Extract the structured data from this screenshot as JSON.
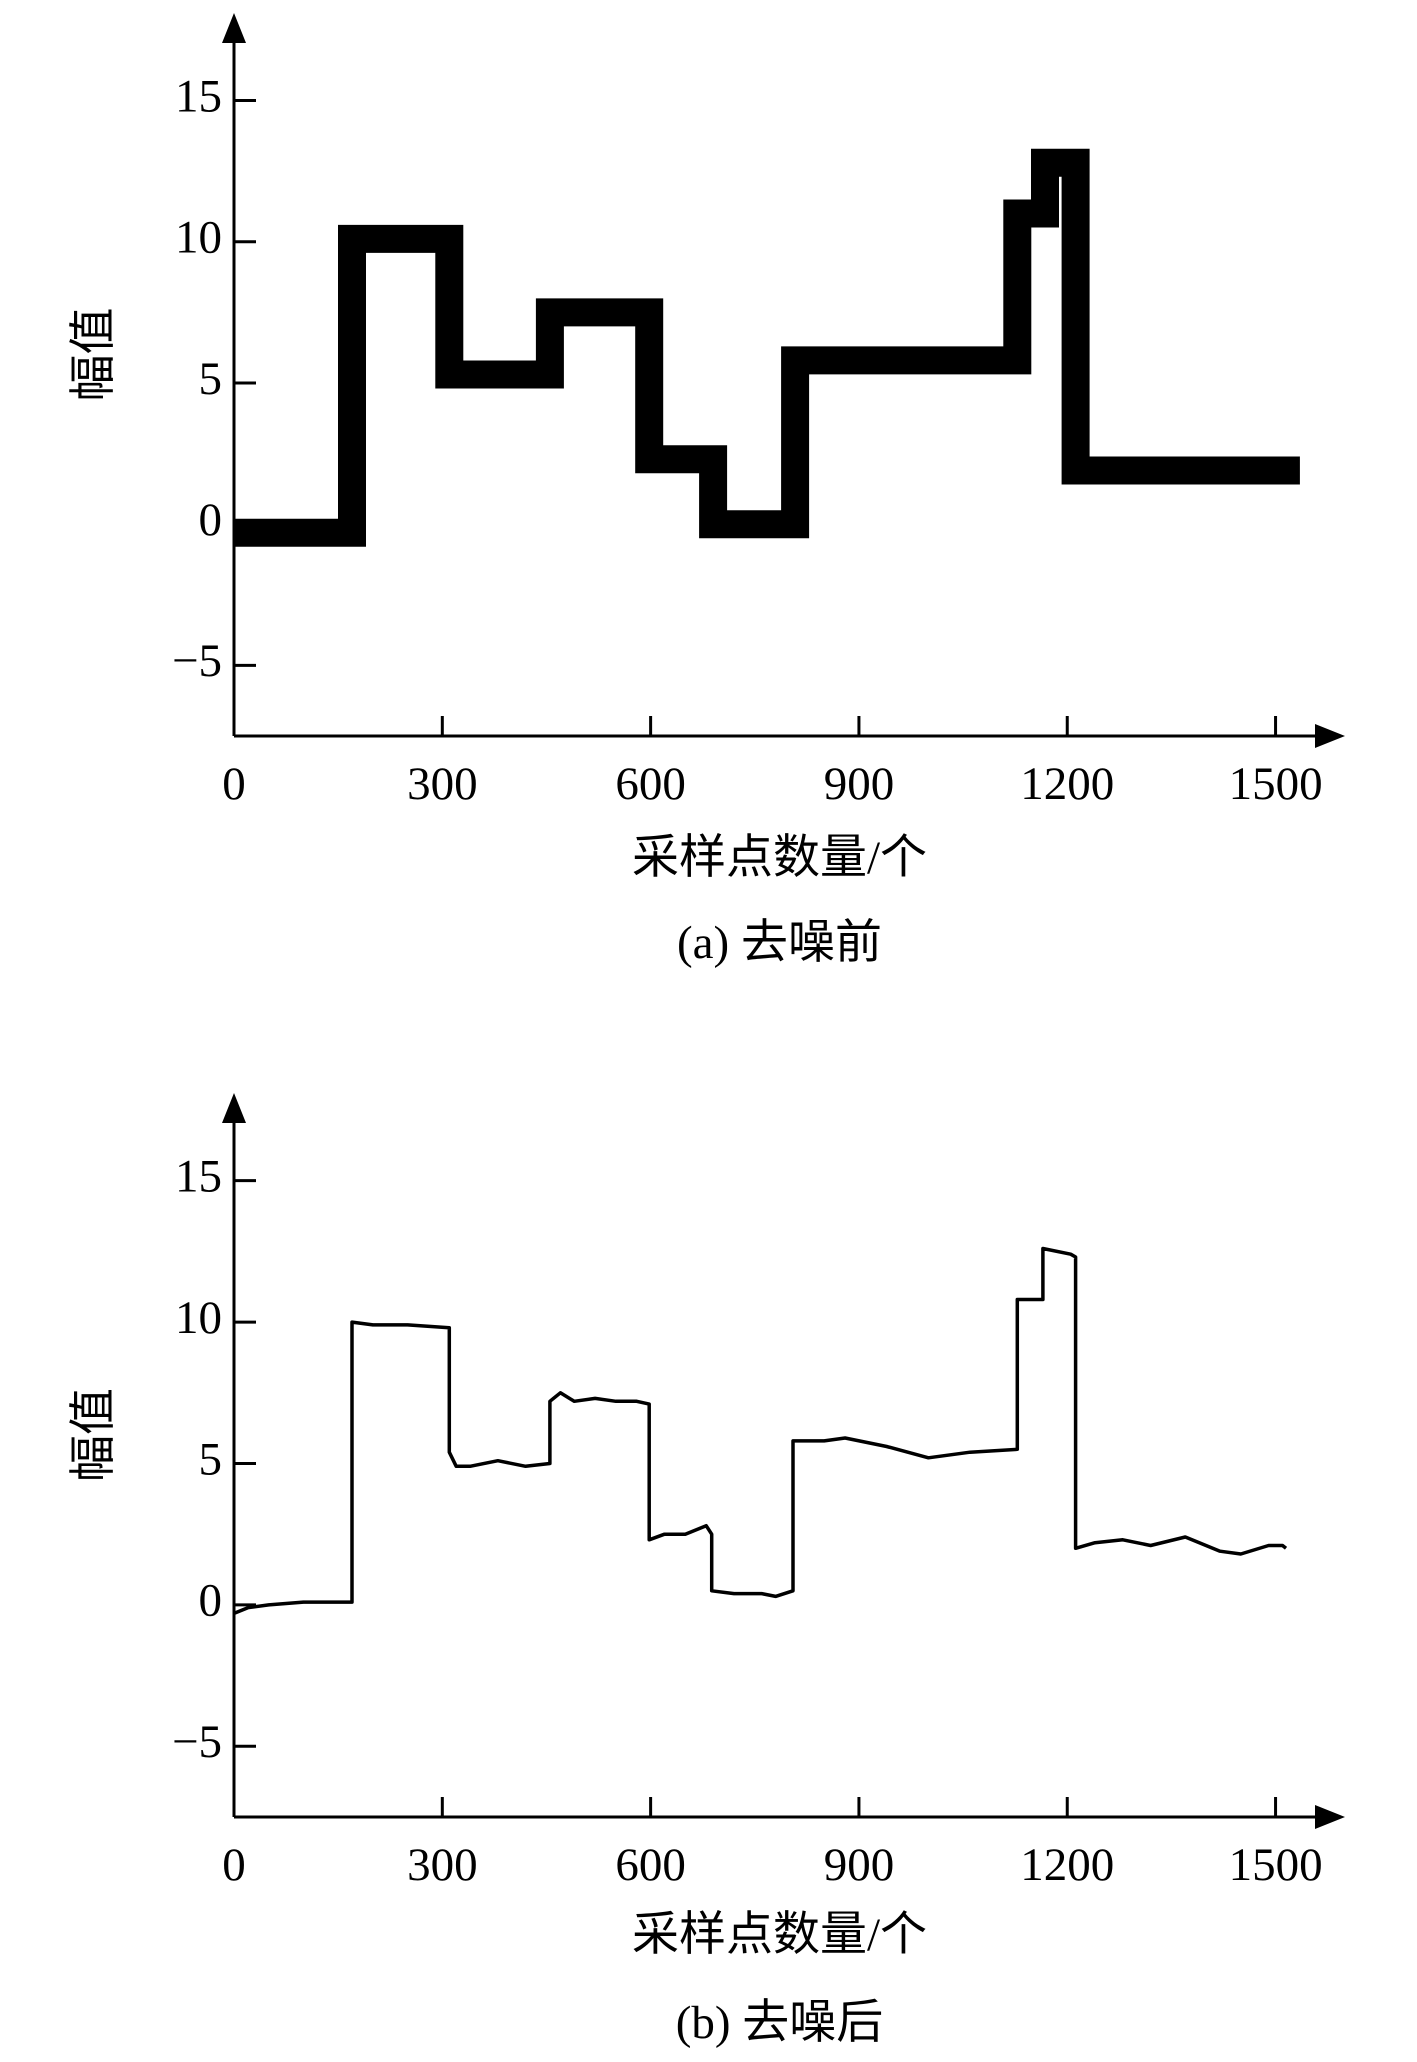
{
  "chart_data": [
    {
      "type": "line",
      "color": "#000000",
      "x": [
        0,
        170,
        170,
        310,
        310,
        455,
        455,
        598,
        598,
        690,
        690,
        808,
        808,
        1128,
        1128,
        1168,
        1168,
        1212,
        1212,
        1535
      ],
      "values": [
        -0.3,
        -0.3,
        10.1,
        10.1,
        5.3,
        5.3,
        7.5,
        7.5,
        2.3,
        2.3,
        0.0,
        0.0,
        5.8,
        5.8,
        11.0,
        11.0,
        12.8,
        12.8,
        1.9,
        1.9
      ],
      "xlim": [
        0,
        1600
      ],
      "ylim": [
        -7.5,
        18.1
      ],
      "xticks": [
        0,
        300,
        600,
        900,
        1200,
        1500
      ],
      "yticks": [
        {
          "value": -5,
          "label": "−5"
        },
        0,
        5,
        10,
        15
      ],
      "y_label": "幅值",
      "x_label": "采样点数量/个",
      "caption": "(a) 去噪前"
    },
    {
      "type": "line",
      "color": "#000000",
      "x": [
        0,
        20,
        50,
        100,
        170,
        170,
        200,
        250,
        310,
        310,
        320,
        340,
        380,
        420,
        455,
        455,
        470,
        490,
        520,
        550,
        580,
        598,
        598,
        620,
        650,
        680,
        688,
        688,
        720,
        760,
        780,
        805,
        805,
        850,
        880,
        940,
        1000,
        1060,
        1128,
        1128,
        1165,
        1165,
        1205,
        1212,
        1212,
        1240,
        1280,
        1320,
        1370,
        1420,
        1450,
        1490,
        1510,
        1515
      ],
      "values": [
        -0.3,
        -0.1,
        0.0,
        0.1,
        0.1,
        10.0,
        9.9,
        9.9,
        9.8,
        5.4,
        4.9,
        4.9,
        5.1,
        4.9,
        5.0,
        7.2,
        7.5,
        7.2,
        7.3,
        7.2,
        7.2,
        7.1,
        2.3,
        2.5,
        2.5,
        2.8,
        2.5,
        0.5,
        0.4,
        0.4,
        0.3,
        0.5,
        5.8,
        5.8,
        5.9,
        5.6,
        5.2,
        5.4,
        5.5,
        10.8,
        10.8,
        12.6,
        12.4,
        12.3,
        2.0,
        2.2,
        2.3,
        2.1,
        2.4,
        1.9,
        1.8,
        2.1,
        2.1,
        2.0
      ],
      "xlim": [
        0,
        1600
      ],
      "ylim": [
        -7.5,
        18.1
      ],
      "xticks": [
        0,
        300,
        600,
        900,
        1200,
        1500
      ],
      "yticks": [
        {
          "value": -5,
          "label": "−5"
        },
        0,
        5,
        10,
        15
      ],
      "y_label": "幅值",
      "x_label": "采样点数量/个",
      "caption": "(b) 去噪后"
    }
  ]
}
